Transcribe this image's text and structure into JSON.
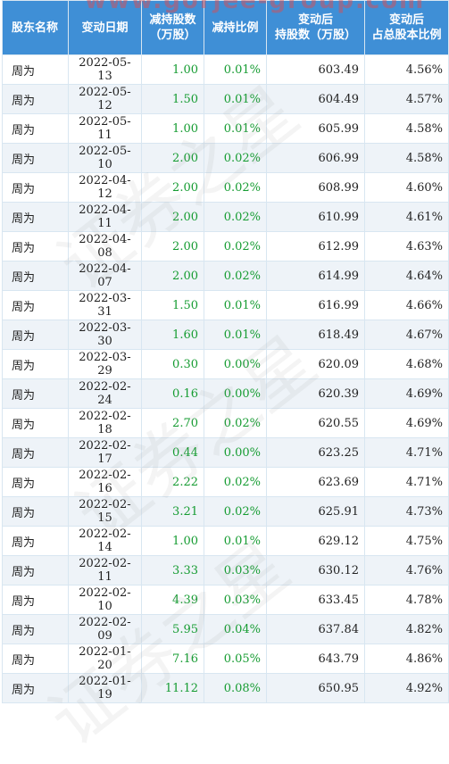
{
  "watermark": {
    "top_text": "www.gorjee-group.com",
    "diagonal_text": "证券之星"
  },
  "table": {
    "headers": {
      "holder": "股东名称",
      "date": "变动日期",
      "reduce_shares": "减持股数\n（万股）",
      "reduce_ratio": "减持比例",
      "after_shares": "变动后\n持股数（万股）",
      "after_ratio": "变动后\n占总股本比例"
    },
    "rows": [
      {
        "holder": "周为",
        "date": "2022-05-13",
        "reduce_shares": "1.00",
        "reduce_ratio": "0.01%",
        "after_shares": "603.49",
        "after_ratio": "4.56%"
      },
      {
        "holder": "周为",
        "date": "2022-05-12",
        "reduce_shares": "1.50",
        "reduce_ratio": "0.01%",
        "after_shares": "604.49",
        "after_ratio": "4.57%"
      },
      {
        "holder": "周为",
        "date": "2022-05-11",
        "reduce_shares": "1.00",
        "reduce_ratio": "0.01%",
        "after_shares": "605.99",
        "after_ratio": "4.58%"
      },
      {
        "holder": "周为",
        "date": "2022-05-10",
        "reduce_shares": "2.00",
        "reduce_ratio": "0.02%",
        "after_shares": "606.99",
        "after_ratio": "4.58%"
      },
      {
        "holder": "周为",
        "date": "2022-04-12",
        "reduce_shares": "2.00",
        "reduce_ratio": "0.02%",
        "after_shares": "608.99",
        "after_ratio": "4.60%"
      },
      {
        "holder": "周为",
        "date": "2022-04-11",
        "reduce_shares": "2.00",
        "reduce_ratio": "0.02%",
        "after_shares": "610.99",
        "after_ratio": "4.61%"
      },
      {
        "holder": "周为",
        "date": "2022-04-08",
        "reduce_shares": "2.00",
        "reduce_ratio": "0.02%",
        "after_shares": "612.99",
        "after_ratio": "4.63%"
      },
      {
        "holder": "周为",
        "date": "2022-04-07",
        "reduce_shares": "2.00",
        "reduce_ratio": "0.02%",
        "after_shares": "614.99",
        "after_ratio": "4.64%"
      },
      {
        "holder": "周为",
        "date": "2022-03-31",
        "reduce_shares": "1.50",
        "reduce_ratio": "0.01%",
        "after_shares": "616.99",
        "after_ratio": "4.66%"
      },
      {
        "holder": "周为",
        "date": "2022-03-30",
        "reduce_shares": "1.60",
        "reduce_ratio": "0.01%",
        "after_shares": "618.49",
        "after_ratio": "4.67%"
      },
      {
        "holder": "周为",
        "date": "2022-03-29",
        "reduce_shares": "0.30",
        "reduce_ratio": "0.00%",
        "after_shares": "620.09",
        "after_ratio": "4.68%"
      },
      {
        "holder": "周为",
        "date": "2022-02-24",
        "reduce_shares": "0.16",
        "reduce_ratio": "0.00%",
        "after_shares": "620.39",
        "after_ratio": "4.69%"
      },
      {
        "holder": "周为",
        "date": "2022-02-18",
        "reduce_shares": "2.70",
        "reduce_ratio": "0.02%",
        "after_shares": "620.55",
        "after_ratio": "4.69%"
      },
      {
        "holder": "周为",
        "date": "2022-02-17",
        "reduce_shares": "0.44",
        "reduce_ratio": "0.00%",
        "after_shares": "623.25",
        "after_ratio": "4.71%"
      },
      {
        "holder": "周为",
        "date": "2022-02-16",
        "reduce_shares": "2.22",
        "reduce_ratio": "0.02%",
        "after_shares": "623.69",
        "after_ratio": "4.71%"
      },
      {
        "holder": "周为",
        "date": "2022-02-15",
        "reduce_shares": "3.21",
        "reduce_ratio": "0.02%",
        "after_shares": "625.91",
        "after_ratio": "4.73%"
      },
      {
        "holder": "周为",
        "date": "2022-02-14",
        "reduce_shares": "1.00",
        "reduce_ratio": "0.01%",
        "after_shares": "629.12",
        "after_ratio": "4.75%"
      },
      {
        "holder": "周为",
        "date": "2022-02-11",
        "reduce_shares": "3.33",
        "reduce_ratio": "0.03%",
        "after_shares": "630.12",
        "after_ratio": "4.76%"
      },
      {
        "holder": "周为",
        "date": "2022-02-10",
        "reduce_shares": "4.39",
        "reduce_ratio": "0.03%",
        "after_shares": "633.45",
        "after_ratio": "4.78%"
      },
      {
        "holder": "周为",
        "date": "2022-02-09",
        "reduce_shares": "5.95",
        "reduce_ratio": "0.04%",
        "after_shares": "637.84",
        "after_ratio": "4.82%"
      },
      {
        "holder": "周为",
        "date": "2022-01-20",
        "reduce_shares": "7.16",
        "reduce_ratio": "0.05%",
        "after_shares": "643.79",
        "after_ratio": "4.86%"
      },
      {
        "holder": "周为",
        "date": "2022-01-19",
        "reduce_shares": "11.12",
        "reduce_ratio": "0.08%",
        "after_shares": "650.95",
        "after_ratio": "4.92%"
      }
    ]
  },
  "colors": {
    "header_bg": "#3f8fd6",
    "header_text": "#ffffff",
    "reduce_value": "#169c32",
    "row_alt_bg": "#eef3f8",
    "border": "#d8e6f1",
    "watermark_red": "#e84848"
  }
}
